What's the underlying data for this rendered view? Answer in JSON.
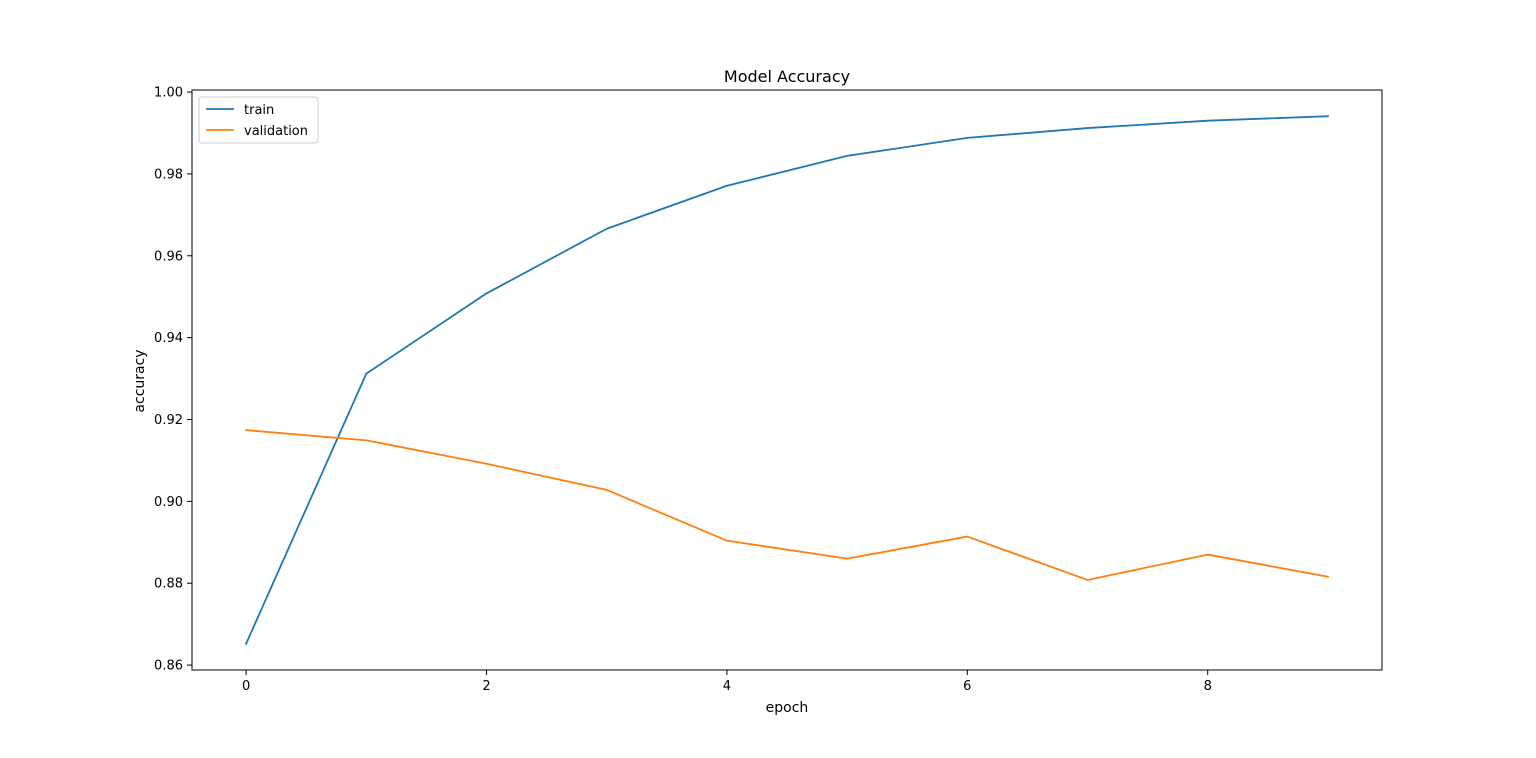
{
  "chart_data": {
    "type": "line",
    "title": "Model Accuracy",
    "xlabel": "epoch",
    "ylabel": "accuracy",
    "x": [
      0,
      1,
      2,
      3,
      4,
      5,
      6,
      7,
      8,
      9
    ],
    "xlim": [
      -0.45,
      9.45
    ],
    "ylim": [
      0.8588,
      1.0005
    ],
    "xticks": [
      0,
      2,
      4,
      6,
      8
    ],
    "xtick_labels": [
      "0",
      "2",
      "4",
      "6",
      "8"
    ],
    "yticks": [
      0.86,
      0.88,
      0.9,
      0.92,
      0.94,
      0.96,
      0.98,
      1.0
    ],
    "ytick_labels": [
      "0.86",
      "0.88",
      "0.90",
      "0.92",
      "0.94",
      "0.96",
      "0.98",
      "1.00"
    ],
    "grid": false,
    "legend_position": "upper-left",
    "series": [
      {
        "name": "train",
        "color": "#1f77b4",
        "values": [
          0.8652,
          0.9312,
          0.9508,
          0.9666,
          0.9771,
          0.9844,
          0.9888,
          0.9912,
          0.993,
          0.9941
        ]
      },
      {
        "name": "validation",
        "color": "#ff7f0e",
        "values": [
          0.9174,
          0.9149,
          0.9092,
          0.9028,
          0.8904,
          0.886,
          0.8914,
          0.8808,
          0.887,
          0.8816
        ]
      }
    ]
  }
}
